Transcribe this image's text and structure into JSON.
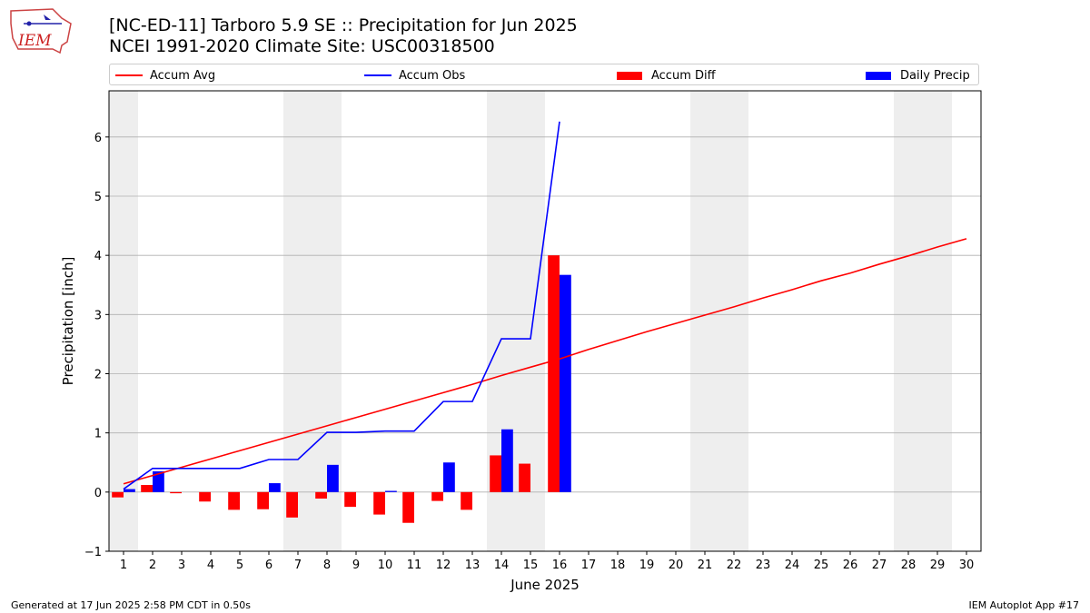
{
  "header": {
    "title_line1": "[NC-ED-11] Tarboro 5.9 SE :: Precipitation for Jun 2025",
    "title_line2": "NCEI 1991-2020 Climate Site: USC00318500",
    "logo_text": "IEM"
  },
  "footer": {
    "left": "Generated at 17 Jun 2025 2:58 PM CDT in 0.50s",
    "right": "IEM Autoplot App #17"
  },
  "colors": {
    "avg": "#ff0000",
    "obs": "#0000ff",
    "diff": "#ff0000",
    "daily": "#0000ff",
    "weekend_shade": "#eeeeee",
    "grid": "#b0b0b0"
  },
  "chart_data": {
    "type": "bar",
    "xlabel": "June 2025",
    "ylabel": "Precipitation [inch]",
    "xlim": [
      0.5,
      30.5
    ],
    "ylim": [
      -1.0,
      6.78
    ],
    "y_ticks": [
      -1,
      0,
      1,
      2,
      3,
      4,
      5,
      6
    ],
    "x_ticks": [
      1,
      2,
      3,
      4,
      5,
      6,
      7,
      8,
      9,
      10,
      11,
      12,
      13,
      14,
      15,
      16,
      17,
      18,
      19,
      20,
      21,
      22,
      23,
      24,
      25,
      26,
      27,
      28,
      29,
      30
    ],
    "grid": "horizontal",
    "legend_placement": "top",
    "weekend_shading": [
      [
        0.5,
        1.5
      ],
      [
        6.5,
        8.5
      ],
      [
        13.5,
        15.5
      ],
      [
        20.5,
        22.5
      ],
      [
        27.5,
        29.5
      ]
    ],
    "series": [
      {
        "name": "Accum Avg",
        "kind": "line",
        "x": [
          1,
          2,
          3,
          4,
          5,
          6,
          7,
          8,
          9,
          10,
          11,
          12,
          13,
          14,
          15,
          16,
          17,
          18,
          19,
          20,
          21,
          22,
          23,
          24,
          25,
          26,
          27,
          28,
          29,
          30
        ],
        "values": [
          0.14,
          0.28,
          0.42,
          0.56,
          0.7,
          0.84,
          0.98,
          1.12,
          1.26,
          1.4,
          1.54,
          1.68,
          1.82,
          1.97,
          2.11,
          2.25,
          2.41,
          2.56,
          2.71,
          2.85,
          2.99,
          3.13,
          3.28,
          3.42,
          3.57,
          3.7,
          3.85,
          3.99,
          4.14,
          4.28
        ]
      },
      {
        "name": "Accum Obs",
        "kind": "line",
        "x": [
          1,
          2,
          3,
          4,
          5,
          6,
          7,
          8,
          9,
          10,
          11,
          12,
          13,
          14,
          15,
          16
        ],
        "values": [
          0.05,
          0.4,
          0.4,
          0.4,
          0.4,
          0.55,
          0.55,
          1.01,
          1.01,
          1.03,
          1.03,
          1.53,
          1.53,
          2.59,
          2.59,
          6.26
        ]
      },
      {
        "name": "Accum Diff",
        "kind": "bar",
        "x": [
          1,
          2,
          3,
          4,
          5,
          6,
          7,
          8,
          9,
          10,
          11,
          12,
          13,
          14,
          15,
          16
        ],
        "values": [
          -0.09,
          0.12,
          -0.02,
          -0.16,
          -0.3,
          -0.29,
          -0.43,
          -0.11,
          -0.25,
          -0.38,
          -0.52,
          -0.15,
          -0.3,
          0.62,
          0.48,
          4.0
        ]
      },
      {
        "name": "Daily Precip",
        "kind": "bar",
        "x": [
          1,
          2,
          3,
          4,
          5,
          6,
          7,
          8,
          9,
          10,
          11,
          12,
          13,
          14,
          15,
          16
        ],
        "values": [
          0.05,
          0.35,
          0.0,
          0.0,
          0.0,
          0.15,
          0.0,
          0.46,
          0.0,
          0.02,
          0.0,
          0.5,
          0.0,
          1.06,
          0.0,
          3.67
        ]
      }
    ]
  }
}
